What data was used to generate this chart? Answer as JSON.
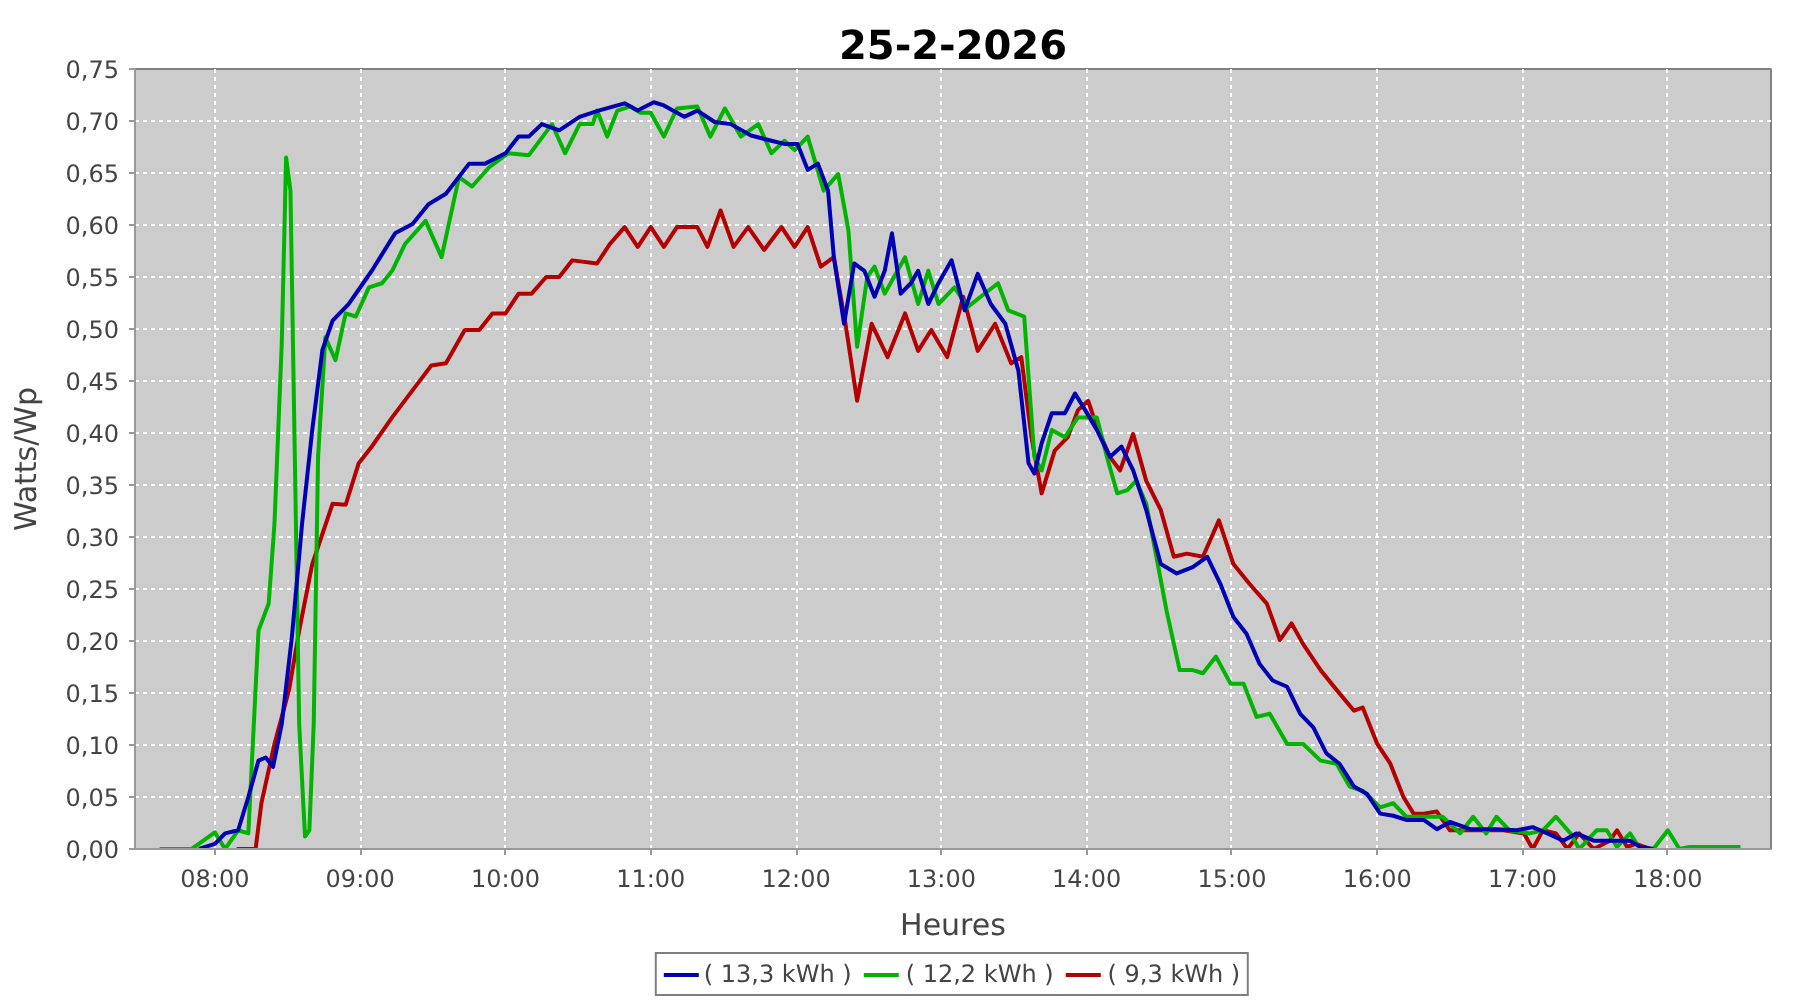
{
  "chart_data": {
    "type": "line",
    "title": "25-2-2026",
    "xlabel": "Heures",
    "ylabel": "Watts/Wp",
    "xlim": [
      7.45,
      18.71
    ],
    "ylim": [
      0,
      0.75
    ],
    "xticks": [
      {
        "value": 8,
        "label": "08:00"
      },
      {
        "value": 9,
        "label": "09:00"
      },
      {
        "value": 10,
        "label": "10:00"
      },
      {
        "value": 11,
        "label": "11:00"
      },
      {
        "value": 12,
        "label": "12:00"
      },
      {
        "value": 13,
        "label": "13:00"
      },
      {
        "value": 14,
        "label": "14:00"
      },
      {
        "value": 15,
        "label": "15:00"
      },
      {
        "value": 16,
        "label": "16:00"
      },
      {
        "value": 17,
        "label": "17:00"
      },
      {
        "value": 18,
        "label": "18:00"
      }
    ],
    "yticks": [
      {
        "value": 0,
        "label": "0,00"
      },
      {
        "value": 0.05,
        "label": "0,05"
      },
      {
        "value": 0.1,
        "label": "0,10"
      },
      {
        "value": 0.15,
        "label": "0,15"
      },
      {
        "value": 0.2,
        "label": "0,20"
      },
      {
        "value": 0.25,
        "label": "0,25"
      },
      {
        "value": 0.3,
        "label": "0,30"
      },
      {
        "value": 0.35,
        "label": "0,35"
      },
      {
        "value": 0.4,
        "label": "0,40"
      },
      {
        "value": 0.45,
        "label": "0,45"
      },
      {
        "value": 0.5,
        "label": "0,50"
      },
      {
        "value": 0.55,
        "label": "0,55"
      },
      {
        "value": 0.6,
        "label": "0,60"
      },
      {
        "value": 0.65,
        "label": "0,65"
      },
      {
        "value": 0.7,
        "label": "0,70"
      },
      {
        "value": 0.75,
        "label": "0,75"
      }
    ],
    "grid": true,
    "legend": "bottom",
    "series": [
      {
        "name": "( 13,3 kWh )",
        "color": "#0000b4",
        "x": [
          7.89,
          8.0,
          8.07,
          8.16,
          8.23,
          8.3,
          8.35,
          8.4,
          8.46,
          8.53,
          8.6,
          8.67,
          8.74,
          8.81,
          8.92,
          9.08,
          9.24,
          9.36,
          9.47,
          9.59,
          9.75,
          9.86,
          10.0,
          10.09,
          10.16,
          10.25,
          10.37,
          10.51,
          10.64,
          10.82,
          10.91,
          11.02,
          11.09,
          11.23,
          11.32,
          11.44,
          11.55,
          11.69,
          11.83,
          11.92,
          12.01,
          12.08,
          12.15,
          12.22,
          12.26,
          12.33,
          12.4,
          12.47,
          12.54,
          12.61,
          12.66,
          12.72,
          12.79,
          12.84,
          12.91,
          12.98,
          13.07,
          13.16,
          13.25,
          13.34,
          13.44,
          13.53,
          13.6,
          13.64,
          13.69,
          13.76,
          13.85,
          13.92,
          13.99,
          14.07,
          14.16,
          14.24,
          14.32,
          14.41,
          14.51,
          14.62,
          14.73,
          14.83,
          14.92,
          15.01,
          15.1,
          15.19,
          15.28,
          15.38,
          15.47,
          15.56,
          15.65,
          15.74,
          15.84,
          15.93,
          16.02,
          16.11,
          16.2,
          16.32,
          16.41,
          16.5,
          16.64,
          16.82,
          16.96,
          17.07,
          17.17,
          17.28,
          17.37,
          17.49,
          17.65,
          17.74,
          17.81,
          17.9
        ],
        "values": [
          0,
          0.005,
          0.015,
          0.018,
          0.05,
          0.085,
          0.088,
          0.079,
          0.12,
          0.204,
          0.313,
          0.403,
          0.48,
          0.508,
          0.524,
          0.556,
          0.592,
          0.601,
          0.62,
          0.63,
          0.659,
          0.659,
          0.669,
          0.685,
          0.685,
          0.697,
          0.691,
          0.704,
          0.71,
          0.717,
          0.71,
          0.718,
          0.715,
          0.704,
          0.71,
          0.699,
          0.697,
          0.686,
          0.681,
          0.678,
          0.678,
          0.653,
          0.659,
          0.633,
          0.569,
          0.505,
          0.563,
          0.556,
          0.531,
          0.556,
          0.592,
          0.534,
          0.544,
          0.556,
          0.524,
          0.544,
          0.566,
          0.518,
          0.553,
          0.524,
          0.505,
          0.46,
          0.371,
          0.361,
          0.39,
          0.419,
          0.419,
          0.438,
          0.422,
          0.403,
          0.377,
          0.387,
          0.364,
          0.326,
          0.274,
          0.265,
          0.271,
          0.281,
          0.255,
          0.223,
          0.207,
          0.178,
          0.162,
          0.156,
          0.13,
          0.117,
          0.092,
          0.082,
          0.06,
          0.053,
          0.034,
          0.032,
          0.028,
          0.028,
          0.019,
          0.026,
          0.019,
          0.019,
          0.018,
          0.021,
          0.015,
          0.008,
          0.015,
          0.008,
          0.008,
          0.008,
          0.002,
          0
        ]
      },
      {
        "name": "( 12,2 kWh )",
        "color": "#00b400",
        "x": [
          7.62,
          7.84,
          8.0,
          8.07,
          8.16,
          8.23,
          8.3,
          8.37,
          8.41,
          8.46,
          8.49,
          8.52,
          8.55,
          8.58,
          8.62,
          8.65,
          8.68,
          8.71,
          8.76,
          8.83,
          8.9,
          8.97,
          9.06,
          9.15,
          9.22,
          9.31,
          9.45,
          9.56,
          9.68,
          9.77,
          9.89,
          10.02,
          10.16,
          10.32,
          10.41,
          10.51,
          10.6,
          10.63,
          10.7,
          10.77,
          10.86,
          10.93,
          11.0,
          11.09,
          11.18,
          11.32,
          11.41,
          11.51,
          11.62,
          11.74,
          11.83,
          11.92,
          11.99,
          12.08,
          12.19,
          12.29,
          12.36,
          12.42,
          12.49,
          12.54,
          12.61,
          12.75,
          12.84,
          12.91,
          12.98,
          13.09,
          13.18,
          13.27,
          13.39,
          13.46,
          13.57,
          13.64,
          13.69,
          13.76,
          13.85,
          13.94,
          14.07,
          14.14,
          14.21,
          14.28,
          14.34,
          14.41,
          14.48,
          14.55,
          14.64,
          14.73,
          14.8,
          14.89,
          14.99,
          15.08,
          15.17,
          15.26,
          15.38,
          15.49,
          15.61,
          15.72,
          15.81,
          15.9,
          16.02,
          16.11,
          16.2,
          16.32,
          16.45,
          16.57,
          16.66,
          16.75,
          16.82,
          16.91,
          17.05,
          17.14,
          17.23,
          17.33,
          17.39,
          17.51,
          17.58,
          17.65,
          17.74,
          17.81,
          17.9,
          18.0,
          18.08,
          18.15,
          18.5
        ],
        "values": [
          0,
          0,
          0.016,
          0,
          0.018,
          0.015,
          0.21,
          0.236,
          0.313,
          0.486,
          0.665,
          0.633,
          0.377,
          0.12,
          0.012,
          0.018,
          0.12,
          0.377,
          0.492,
          0.47,
          0.515,
          0.512,
          0.54,
          0.544,
          0.556,
          0.582,
          0.604,
          0.569,
          0.646,
          0.637,
          0.656,
          0.669,
          0.667,
          0.697,
          0.669,
          0.697,
          0.697,
          0.71,
          0.685,
          0.71,
          0.714,
          0.708,
          0.708,
          0.685,
          0.712,
          0.714,
          0.685,
          0.712,
          0.685,
          0.697,
          0.669,
          0.681,
          0.672,
          0.685,
          0.633,
          0.649,
          0.595,
          0.483,
          0.55,
          0.56,
          0.534,
          0.569,
          0.524,
          0.556,
          0.524,
          0.54,
          0.521,
          0.531,
          0.544,
          0.518,
          0.512,
          0.377,
          0.364,
          0.403,
          0.396,
          0.415,
          0.415,
          0.377,
          0.342,
          0.345,
          0.354,
          0.332,
          0.281,
          0.229,
          0.172,
          0.172,
          0.169,
          0.185,
          0.159,
          0.159,
          0.127,
          0.13,
          0.101,
          0.101,
          0.085,
          0.082,
          0.06,
          0.056,
          0.04,
          0.044,
          0.031,
          0.031,
          0.031,
          0.015,
          0.031,
          0.015,
          0.031,
          0.018,
          0.015,
          0.018,
          0.031,
          0.015,
          0,
          0.018,
          0.018,
          0.002,
          0.015,
          0,
          0,
          0.018,
          0,
          0.002,
          0.002
        ]
      },
      {
        "name": "( 9,3 kWh )",
        "color": "#b40000",
        "x": [
          8.15,
          8.28,
          8.32,
          8.41,
          8.51,
          8.58,
          8.67,
          8.81,
          8.9,
          8.99,
          9.08,
          9.22,
          9.36,
          9.49,
          9.59,
          9.72,
          9.82,
          9.91,
          10.0,
          10.09,
          10.18,
          10.28,
          10.37,
          10.46,
          10.63,
          10.72,
          10.82,
          10.91,
          11.0,
          11.09,
          11.18,
          11.32,
          11.39,
          11.48,
          11.57,
          11.67,
          11.78,
          11.9,
          11.99,
          12.08,
          12.17,
          12.26,
          12.34,
          12.42,
          12.52,
          12.63,
          12.75,
          12.84,
          12.93,
          13.04,
          13.15,
          13.25,
          13.37,
          13.48,
          13.55,
          13.62,
          13.69,
          13.78,
          13.87,
          13.94,
          14.01,
          14.07,
          14.16,
          14.23,
          14.32,
          14.41,
          14.51,
          14.6,
          14.69,
          14.8,
          14.91,
          15.01,
          15.12,
          15.24,
          15.33,
          15.41,
          15.49,
          15.61,
          15.72,
          15.84,
          15.9,
          16.0,
          16.09,
          16.18,
          16.25,
          16.32,
          16.41,
          16.5,
          16.62,
          16.73,
          16.87,
          17.01,
          17.07,
          17.14,
          17.23,
          17.31,
          17.39,
          17.49,
          17.6,
          17.65,
          17.72,
          17.78,
          17.88
        ],
        "values": [
          0,
          0,
          0.044,
          0.101,
          0.153,
          0.21,
          0.274,
          0.332,
          0.331,
          0.371,
          0.387,
          0.415,
          0.441,
          0.465,
          0.467,
          0.499,
          0.499,
          0.515,
          0.515,
          0.534,
          0.534,
          0.55,
          0.55,
          0.566,
          0.563,
          0.582,
          0.598,
          0.579,
          0.598,
          0.579,
          0.598,
          0.598,
          0.579,
          0.614,
          0.579,
          0.598,
          0.576,
          0.598,
          0.579,
          0.598,
          0.56,
          0.569,
          0.505,
          0.431,
          0.505,
          0.473,
          0.515,
          0.479,
          0.499,
          0.473,
          0.531,
          0.479,
          0.505,
          0.467,
          0.473,
          0.396,
          0.342,
          0.383,
          0.396,
          0.422,
          0.431,
          0.406,
          0.377,
          0.364,
          0.399,
          0.354,
          0.326,
          0.281,
          0.284,
          0.281,
          0.316,
          0.274,
          0.255,
          0.236,
          0.201,
          0.217,
          0.197,
          0.172,
          0.153,
          0.133,
          0.136,
          0.101,
          0.082,
          0.05,
          0.034,
          0.034,
          0.036,
          0.018,
          0.018,
          0.018,
          0.018,
          0.015,
          0,
          0.018,
          0.015,
          0,
          0.015,
          0,
          0.008,
          0.018,
          0.002,
          0.005,
          0
        ]
      }
    ]
  }
}
